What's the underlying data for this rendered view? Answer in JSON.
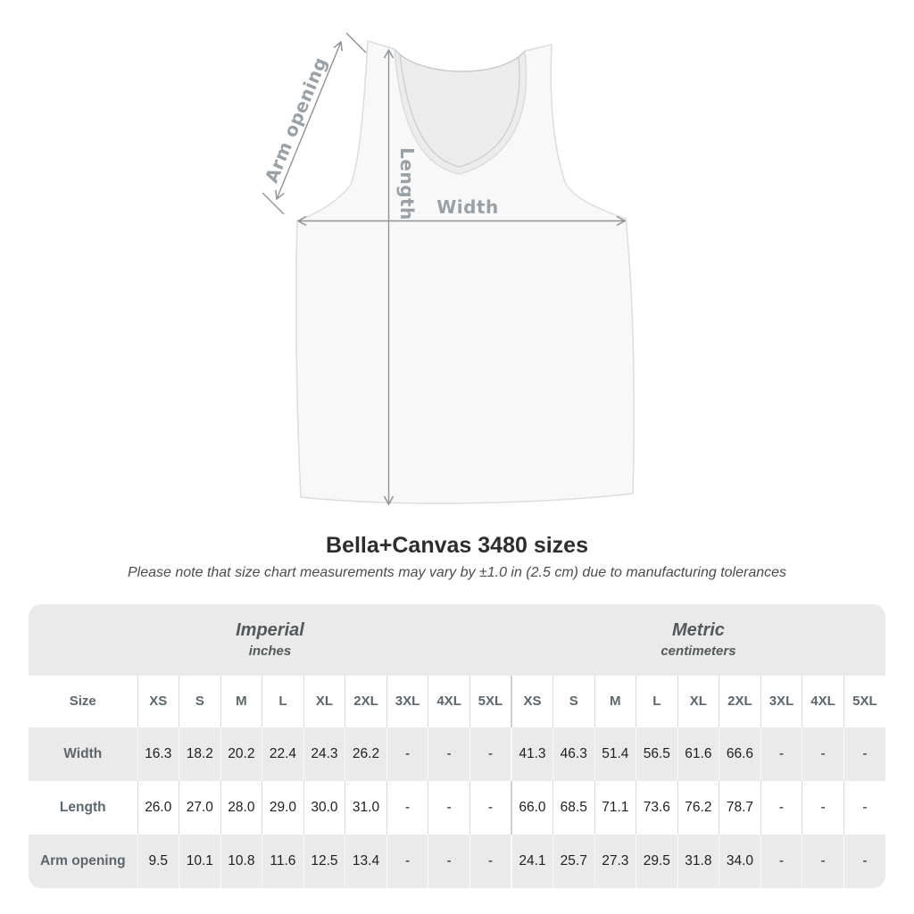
{
  "diagram": {
    "width_label": "Width",
    "length_label": "Length",
    "arm_opening_label": "Arm opening"
  },
  "header": {
    "title": "Bella+Canvas 3480 sizes",
    "note": "Please note that size chart measurements may vary by ±1.0 in (2.5 cm) due to manufacturing tolerances"
  },
  "table": {
    "groups": [
      {
        "label": "Imperial",
        "sublabel": "inches"
      },
      {
        "label": "Metric",
        "sublabel": "centimeters"
      }
    ],
    "size_col_header": "Size",
    "sizes": [
      "XS",
      "S",
      "M",
      "L",
      "XL",
      "2XL",
      "3XL",
      "4XL",
      "5XL"
    ],
    "rows": [
      {
        "label": "Width",
        "imperial": [
          "16.3",
          "18.2",
          "20.2",
          "22.4",
          "24.3",
          "26.2",
          "-",
          "-",
          "-"
        ],
        "metric": [
          "41.3",
          "46.3",
          "51.4",
          "56.5",
          "61.6",
          "66.6",
          "-",
          "-",
          "-"
        ]
      },
      {
        "label": "Length",
        "imperial": [
          "26.0",
          "27.0",
          "28.0",
          "29.0",
          "30.0",
          "31.0",
          "-",
          "-",
          "-"
        ],
        "metric": [
          "66.0",
          "68.5",
          "71.1",
          "73.6",
          "76.2",
          "78.7",
          "-",
          "-",
          "-"
        ]
      },
      {
        "label": "Arm opening",
        "imperial": [
          "9.5",
          "10.1",
          "10.8",
          "11.6",
          "12.5",
          "13.4",
          "-",
          "-",
          "-"
        ],
        "metric": [
          "24.1",
          "25.7",
          "27.3",
          "29.5",
          "31.8",
          "34.0",
          "-",
          "-",
          "-"
        ]
      }
    ]
  },
  "colors": {
    "band_gray": "#eaeaea",
    "label_gray": "#5d666b",
    "group_text": "#54595c",
    "value_text": "#1f1f1f",
    "arrow_gray": "#8f9396",
    "diagram_label_gray": "#9aa0a3",
    "title_text": "#2b2d2e",
    "note_text": "#4c4c4c"
  }
}
